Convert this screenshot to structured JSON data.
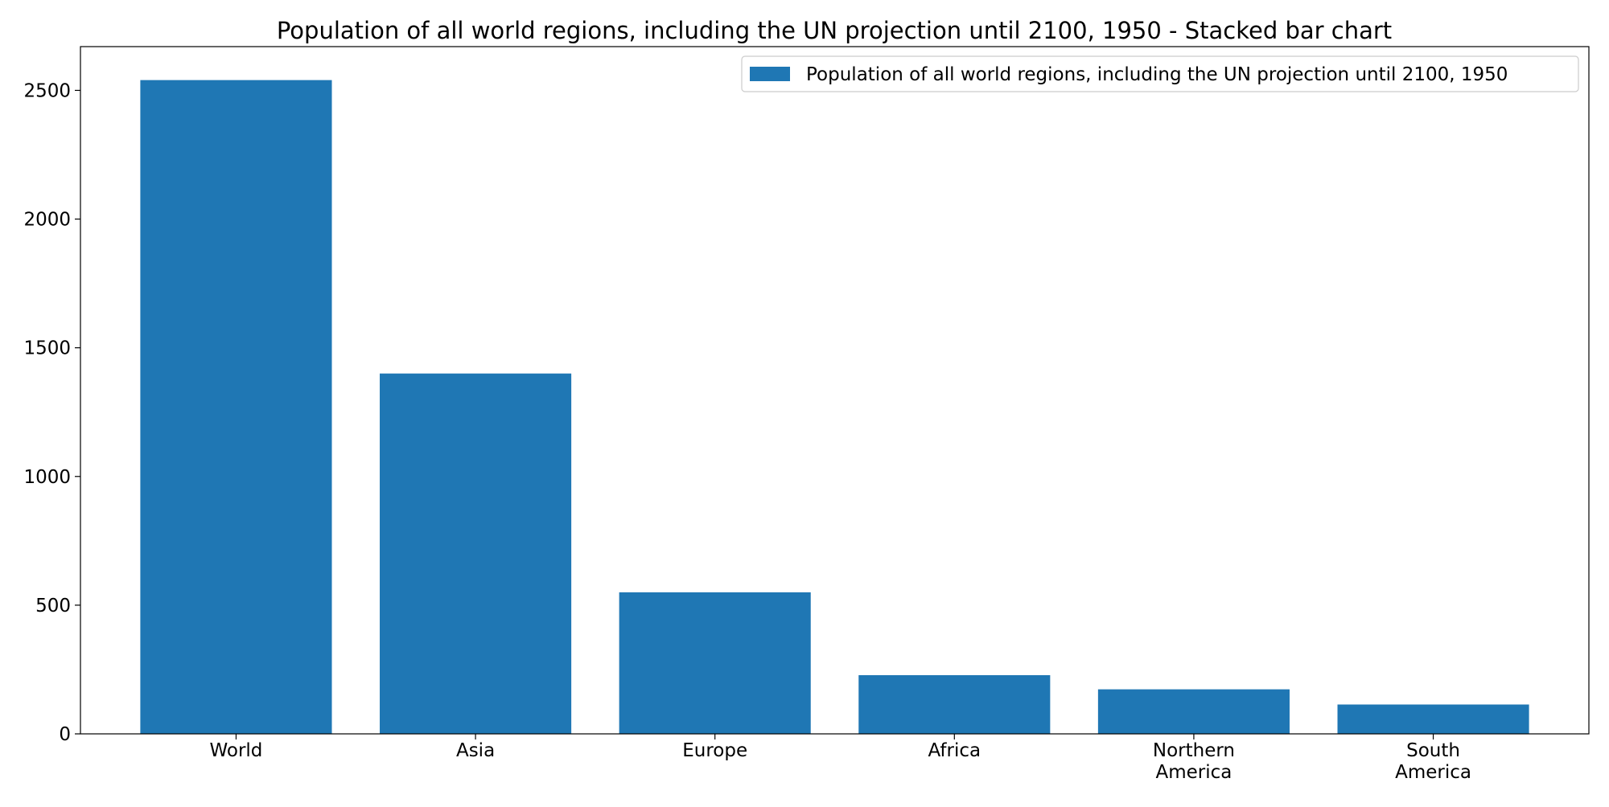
{
  "chart_data": {
    "type": "bar",
    "title": "Population of all world regions, including the UN projection until 2100, 1950 - Stacked bar chart",
    "categories": [
      [
        "World"
      ],
      [
        "Asia"
      ],
      [
        "Europe"
      ],
      [
        "Africa"
      ],
      [
        "Northern",
        "America"
      ],
      [
        "South",
        "America"
      ]
    ],
    "series": [
      {
        "name": "Population of all world regions, including the UN projection until 2100, 1950",
        "color": "#1f77b4",
        "values": [
          2540,
          1400,
          550,
          228,
          173,
          114
        ]
      }
    ],
    "xlabel": "",
    "ylabel": "",
    "ylim": [
      0,
      2670
    ],
    "yticks": [
      0,
      500,
      1000,
      1500,
      2000,
      2500
    ],
    "grid": false,
    "legend": "top-right"
  }
}
